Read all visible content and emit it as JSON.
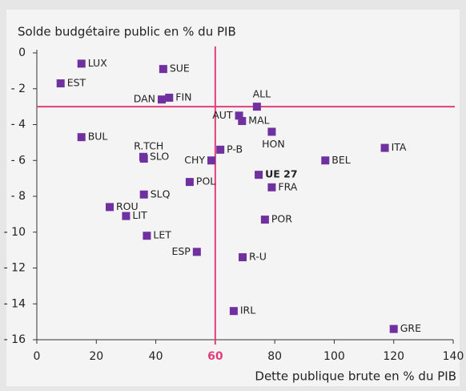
{
  "chart_data": {
    "type": "scatter",
    "ylabel": "Solde budgétaire public en % du PIB",
    "xlabel": "Dette publique brute en % du PIB",
    "labels": [
      "LUX",
      "EST",
      "SUE",
      "DAN",
      "FIN",
      "ALL",
      "AUT",
      "MAL",
      "HON",
      "BUL",
      "ITA",
      "BEL",
      "R.TCH",
      "SLO",
      "P-B",
      "CHY",
      "UE 27",
      "FRA",
      "POL",
      "SLQ",
      "ROU",
      "LIT",
      "POR",
      "LET",
      "ESP",
      "R-U",
      "IRL",
      "GRE"
    ],
    "x": [
      15,
      8,
      42.5,
      42,
      44.5,
      74,
      68,
      69,
      79,
      15,
      117,
      97,
      36,
      35.8,
      61.7,
      58.7,
      74.6,
      79,
      51.4,
      36,
      24.5,
      30,
      76.7,
      37,
      53.8,
      69.2,
      66.2,
      120
    ],
    "values": [
      -0.6,
      -1.7,
      -0.9,
      -2.6,
      -2.5,
      -3.0,
      -3.5,
      -3.8,
      -4.4,
      -4.7,
      -5.3,
      -6.0,
      -5.9,
      -5.8,
      -5.4,
      -6.0,
      -6.8,
      -7.5,
      -7.2,
      -7.9,
      -8.6,
      -9.1,
      -9.3,
      -10.2,
      -11.1,
      -11.4,
      -14.4,
      -15.4
    ],
    "color": "#7030a0",
    "xlim": [
      0,
      140
    ],
    "xticks": [
      0,
      20,
      40,
      60,
      80,
      100,
      120,
      140
    ],
    "ylim": [
      -16,
      0
    ],
    "yticks": [
      0,
      {
        "value": -2,
        "label": "- 2"
      },
      {
        "value": -4,
        "label": "- 4"
      },
      {
        "value": -6,
        "label": "- 6"
      },
      {
        "value": -8,
        "label": "- 8"
      },
      {
        "value": -10,
        "label": "- 10"
      },
      {
        "value": -12,
        "label": "- 12"
      },
      {
        "value": -14,
        "label": "- 14"
      },
      {
        "value": -16,
        "label": "- 16"
      }
    ],
    "reference_lines": {
      "x": 60,
      "y": -3,
      "color": "#e0407a"
    },
    "grid": false
  }
}
